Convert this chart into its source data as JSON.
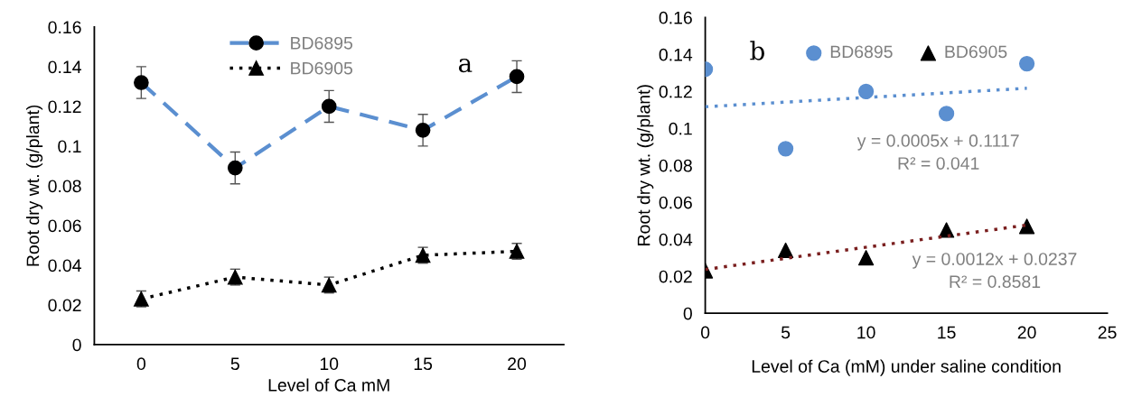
{
  "chart_data": [
    {
      "type": "line",
      "categories": [
        "0",
        "5",
        "10",
        "15",
        "20"
      ],
      "xlabel": "Level of Ca mM",
      "ylabel": "Root dry wt. (g/plant)",
      "ylim": [
        0,
        0.16
      ],
      "yticks": [
        0,
        0.02,
        0.04,
        0.06,
        0.08,
        {
          "value": 0.1,
          "label": "0.1"
        },
        0.12,
        0.14,
        0.16
      ],
      "legend": "top",
      "grid": false,
      "annotations": [
        "a"
      ],
      "series": [
        {
          "name": "BD6895",
          "color": "#5b8fd0",
          "marker": "circle",
          "line_style": "dashed",
          "values": [
            0.132,
            0.089,
            0.12,
            0.108,
            0.135
          ],
          "errors": [
            0.008,
            0.008,
            0.008,
            0.008,
            0.008
          ]
        },
        {
          "name": "BD6905",
          "color": "#000000",
          "marker": "triangle",
          "line_style": "dotted",
          "values": [
            0.023,
            0.034,
            0.03,
            0.045,
            0.047
          ],
          "errors": [
            0.004,
            0.004,
            0.004,
            0.004,
            0.004
          ]
        }
      ]
    },
    {
      "type": "scatter",
      "xlabel": "Level of Ca (mM) under saline condition",
      "ylabel": "Root dry wt. (g/plant)",
      "xlim": [
        0,
        25
      ],
      "xticks": [
        0,
        5,
        10,
        15,
        20,
        25
      ],
      "ylim": [
        0,
        0.16
      ],
      "yticks": [
        0,
        0.02,
        0.04,
        0.06,
        0.08,
        {
          "value": 0.1,
          "label": "0.1"
        },
        0.12,
        0.14,
        0.16
      ],
      "legend": "top",
      "grid": false,
      "annotations": [
        "b",
        "y = 0.0005x + 0.1117\nR² = 0.041",
        "y = 0.0012x + 0.0237\nR² = 0.8581"
      ],
      "series": [
        {
          "name": "BD6895",
          "color": "#5b8fd0",
          "marker": "circle",
          "x": [
            0,
            5,
            10,
            15,
            20
          ],
          "values": [
            0.132,
            0.089,
            0.12,
            0.108,
            0.135
          ]
        },
        {
          "name": "BD6905",
          "color": "#000000",
          "marker": "triangle",
          "x": [
            0,
            5,
            10,
            15,
            20
          ],
          "values": [
            0.023,
            0.034,
            0.03,
            0.045,
            0.047
          ]
        },
        {
          "type": "line",
          "color": "#5b8fd0",
          "line_style": "dotted",
          "marker": "none",
          "x": [
            0,
            20
          ],
          "values": [
            0.1117,
            0.1217
          ]
        },
        {
          "type": "line",
          "color": "#7a1f1f",
          "line_style": "dotted",
          "marker": "none",
          "x": [
            0,
            20
          ],
          "values": [
            0.0237,
            0.0477
          ]
        }
      ]
    }
  ]
}
